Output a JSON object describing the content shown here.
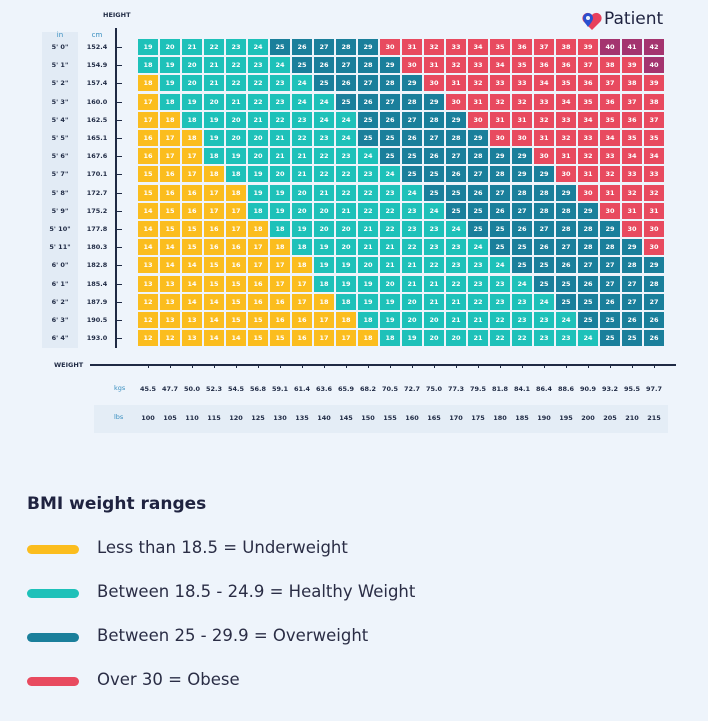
{
  "brand": {
    "name": "Patient",
    "colors": {
      "heart": "#e8405c",
      "pin": "#2a4fd0"
    }
  },
  "chart_data": {
    "type": "heatmap",
    "ylabel": "HEIGHT",
    "xlabel": "WEIGHT",
    "height_units": [
      "in",
      "cm"
    ],
    "weight_units": [
      "kgs",
      "lbs"
    ],
    "heights_ft": [
      "5' 0\"",
      "5' 1\"",
      "5' 2\"",
      "5' 3\"",
      "5' 4\"",
      "5' 5\"",
      "5' 6\"",
      "5' 7\"",
      "5' 8\"",
      "5' 9\"",
      "5' 10\"",
      "5' 11\"",
      "6' 0\"",
      "6' 1\"",
      "6' 2\"",
      "6' 3\"",
      "6' 4\""
    ],
    "heights_cm": [
      "152.4",
      "154.9",
      "157.4",
      "160.0",
      "162.5",
      "165.1",
      "167.6",
      "170.1",
      "172.7",
      "175.2",
      "177.8",
      "180.3",
      "182.8",
      "185.4",
      "187.9",
      "190.5",
      "193.0"
    ],
    "weights_kg": [
      "45.5",
      "47.7",
      "50.0",
      "52.3",
      "54.5",
      "56.8",
      "59.1",
      "61.4",
      "63.6",
      "65.9",
      "68.2",
      "70.5",
      "72.7",
      "75.0",
      "77.3",
      "79.5",
      "81.8",
      "84.1",
      "86.4",
      "88.6",
      "90.9",
      "93.2",
      "95.5",
      "97.7"
    ],
    "weights_lbs": [
      "100",
      "105",
      "110",
      "115",
      "120",
      "125",
      "130",
      "135",
      "140",
      "145",
      "150",
      "155",
      "160",
      "165",
      "170",
      "175",
      "180",
      "185",
      "190",
      "195",
      "200",
      "205",
      "210",
      "215"
    ],
    "values": [
      [
        19,
        20,
        21,
        22,
        23,
        24,
        25,
        26,
        27,
        28,
        29,
        30,
        31,
        32,
        33,
        34,
        35,
        36,
        37,
        38,
        39,
        40,
        41,
        42
      ],
      [
        18,
        19,
        20,
        21,
        22,
        23,
        24,
        25,
        26,
        27,
        28,
        29,
        30,
        31,
        32,
        33,
        34,
        35,
        36,
        36,
        37,
        38,
        39,
        40
      ],
      [
        18,
        19,
        20,
        21,
        22,
        22,
        23,
        24,
        25,
        26,
        27,
        28,
        29,
        30,
        31,
        32,
        33,
        33,
        34,
        35,
        36,
        37,
        38,
        39
      ],
      [
        17,
        18,
        19,
        20,
        21,
        22,
        23,
        24,
        24,
        25,
        26,
        27,
        28,
        29,
        30,
        31,
        32,
        32,
        33,
        34,
        35,
        36,
        37,
        38
      ],
      [
        17,
        18,
        18,
        19,
        20,
        21,
        22,
        23,
        24,
        24,
        25,
        26,
        27,
        28,
        29,
        30,
        31,
        31,
        32,
        33,
        34,
        35,
        36,
        37
      ],
      [
        16,
        17,
        18,
        19,
        20,
        20,
        21,
        22,
        23,
        24,
        25,
        25,
        26,
        27,
        28,
        29,
        30,
        30,
        31,
        32,
        33,
        34,
        35,
        35
      ],
      [
        16,
        17,
        17,
        18,
        19,
        20,
        21,
        21,
        22,
        23,
        24,
        25,
        25,
        26,
        27,
        28,
        29,
        29,
        30,
        31,
        32,
        33,
        34,
        34
      ],
      [
        15,
        16,
        17,
        18,
        18,
        19,
        20,
        21,
        22,
        22,
        23,
        24,
        25,
        25,
        26,
        27,
        28,
        29,
        29,
        30,
        31,
        32,
        33,
        33
      ],
      [
        15,
        16,
        16,
        17,
        18,
        19,
        19,
        20,
        21,
        22,
        22,
        23,
        24,
        25,
        25,
        26,
        27,
        28,
        28,
        29,
        30,
        31,
        32,
        32
      ],
      [
        14,
        15,
        16,
        17,
        17,
        18,
        19,
        20,
        20,
        21,
        22,
        22,
        23,
        24,
        25,
        25,
        26,
        27,
        28,
        28,
        29,
        30,
        31,
        31
      ],
      [
        14,
        15,
        15,
        16,
        17,
        18,
        18,
        19,
        20,
        20,
        21,
        22,
        23,
        23,
        24,
        25,
        25,
        26,
        27,
        28,
        28,
        29,
        30,
        30
      ],
      [
        14,
        14,
        15,
        16,
        16,
        17,
        18,
        18,
        19,
        20,
        21,
        21,
        22,
        23,
        23,
        24,
        25,
        25,
        26,
        27,
        28,
        28,
        29,
        30
      ],
      [
        13,
        14,
        14,
        15,
        16,
        17,
        17,
        18,
        19,
        19,
        20,
        21,
        21,
        22,
        23,
        23,
        24,
        25,
        25,
        26,
        27,
        27,
        28,
        29
      ],
      [
        13,
        13,
        14,
        15,
        15,
        16,
        17,
        17,
        18,
        19,
        19,
        20,
        21,
        21,
        22,
        23,
        23,
        24,
        25,
        25,
        26,
        27,
        27,
        28
      ],
      [
        12,
        13,
        14,
        14,
        15,
        16,
        16,
        17,
        18,
        18,
        19,
        19,
        20,
        21,
        21,
        22,
        23,
        23,
        24,
        25,
        25,
        26,
        27,
        27
      ],
      [
        12,
        13,
        13,
        14,
        15,
        15,
        16,
        16,
        17,
        18,
        18,
        19,
        20,
        20,
        21,
        21,
        22,
        23,
        23,
        24,
        25,
        25,
        26,
        26
      ],
      [
        12,
        12,
        13,
        14,
        14,
        15,
        15,
        16,
        17,
        17,
        18,
        18,
        19,
        20,
        20,
        21,
        22,
        22,
        23,
        23,
        24,
        25,
        25,
        26
      ]
    ],
    "thresholds": [
      18.5,
      25,
      30,
      40
    ],
    "category_colors": {
      "underweight": "#fbbd1e",
      "healthy": "#1ec1b9",
      "overweight": "#1a7f9b",
      "obese": "#e84a5f",
      "severely_obese": "#a4346f"
    }
  },
  "legend": {
    "title": "BMI weight ranges",
    "items": [
      {
        "label": "Less than 18.5 = Underweight",
        "color": "#fbbd1e"
      },
      {
        "label": "Between 18.5 - 24.9 = Healthy Weight",
        "color": "#1ec1b9"
      },
      {
        "label": "Between 25 - 29.9 = Overweight",
        "color": "#1a7f9b"
      },
      {
        "label": "Over 30 = Obese",
        "color": "#e84a5f"
      }
    ]
  }
}
